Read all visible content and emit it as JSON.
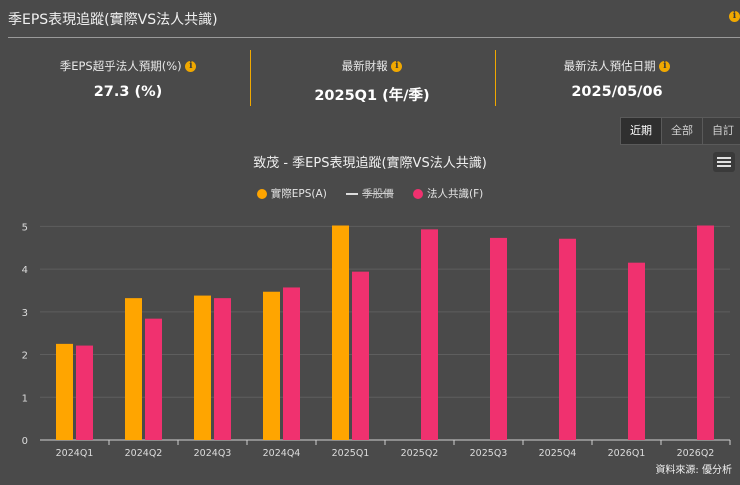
{
  "header": {
    "title": "季EPS表現追蹤(實際VS法人共識)",
    "info_glyph": "i"
  },
  "stats": [
    {
      "label": "季EPS超乎法人預期(%)",
      "value": "27.3 (%)"
    },
    {
      "label": "最新財報",
      "value": "2025Q1 (年/季)"
    },
    {
      "label": "最新法人預估日期",
      "value": "2025/05/06"
    }
  ],
  "tabs": [
    {
      "label": "近期",
      "active": true
    },
    {
      "label": "全部",
      "active": false
    },
    {
      "label": "自訂",
      "active": false
    }
  ],
  "legend": {
    "actual": "實際EPS(A)",
    "dps": "季股價",
    "consensus": "法人共識(F)"
  },
  "source": "資料來源: 優分析",
  "colors": {
    "actual": "#ffa500",
    "consensus": "#f0316f",
    "accent": "#f0a800"
  },
  "chart_data": {
    "type": "bar",
    "title": "致茂 - 季EPS表現追蹤(實際VS法人共識)",
    "categories": [
      "2024Q1",
      "2024Q2",
      "2024Q3",
      "2024Q4",
      "2025Q1",
      "2025Q2",
      "2025Q3",
      "2025Q4",
      "2026Q1",
      "2026Q2"
    ],
    "series": [
      {
        "name": "實際EPS(A)",
        "values": [
          2.25,
          3.32,
          3.38,
          3.47,
          5.02,
          null,
          null,
          null,
          null,
          null
        ]
      },
      {
        "name": "法人共識(F)",
        "values": [
          2.21,
          2.84,
          3.32,
          3.57,
          3.94,
          4.93,
          4.73,
          4.71,
          4.15,
          5.02
        ]
      }
    ],
    "yticks": [
      0,
      1,
      2,
      3,
      4,
      5
    ],
    "ylim": [
      0,
      5.5
    ],
    "legend_position": "top-center"
  }
}
